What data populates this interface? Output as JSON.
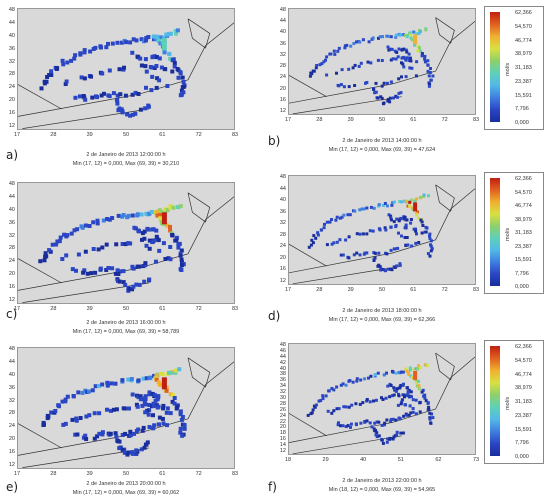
{
  "colors": {
    "background": "#d9d9d9",
    "boundary": "#333333",
    "colormap": [
      "#1a2d9c",
      "#2a46c4",
      "#3f7fe0",
      "#52b8e8",
      "#5fd0b8",
      "#8ed06a",
      "#d8e040",
      "#f0b030",
      "#e06020",
      "#c02010"
    ]
  },
  "chart_data": [
    {
      "type": "heatmap",
      "panel_label": "a)",
      "date": "2 de Janeiro de 2013 12:00:00 h",
      "stats": "Min (17, 12) = 0,000, Max (69, 39) = 30,210",
      "max_value": 30.21,
      "xticks": [
        "17",
        "28",
        "39",
        "50",
        "61",
        "72",
        "83"
      ],
      "yticks": [
        "48",
        "44",
        "40",
        "36",
        "32",
        "28",
        "24",
        "20",
        "16",
        "12"
      ]
    },
    {
      "type": "heatmap",
      "panel_label": "b)",
      "date": "2 de Janeiro de 2013 14:00:00 h",
      "stats": "Min (17, 12) = 0,000, Max (69, 39) = 47,624",
      "max_value": 47.624,
      "xticks": [
        "17",
        "28",
        "39",
        "50",
        "61",
        "72",
        "83"
      ],
      "yticks": [
        "48",
        "44",
        "40",
        "36",
        "32",
        "28",
        "24",
        "20",
        "16",
        "12"
      ]
    },
    {
      "type": "heatmap",
      "panel_label": "c)",
      "date": "2 de Janeiro de 2013 16:00:00 h",
      "stats": "Min (17, 12) = 0,000, Max (69, 39) = 58,789",
      "max_value": 58.789,
      "xticks": [
        "17",
        "28",
        "39",
        "50",
        "61",
        "72",
        "83"
      ],
      "yticks": [
        "48",
        "44",
        "40",
        "36",
        "32",
        "28",
        "24",
        "20",
        "16",
        "12"
      ]
    },
    {
      "type": "heatmap",
      "panel_label": "d)",
      "date": "2 de Janeiro de 2013 18:00:00 h",
      "stats": "Min (17, 12) = 0,000, Max (69, 39) = 62,366",
      "max_value": 62.366,
      "xticks": [
        "17",
        "28",
        "39",
        "50",
        "61",
        "72",
        "83"
      ],
      "yticks": [
        "48",
        "44",
        "40",
        "36",
        "32",
        "28",
        "24",
        "20",
        "16",
        "12"
      ]
    },
    {
      "type": "heatmap",
      "panel_label": "e)",
      "date": "2 de Janeiro de 2013 20:00:00 h",
      "stats": "Min (17, 12) = 0,000, Max (69, 39) = 60,062",
      "max_value": 60.062,
      "xticks": [
        "17",
        "28",
        "39",
        "50",
        "61",
        "72",
        "83"
      ],
      "yticks": [
        "48",
        "44",
        "40",
        "36",
        "32",
        "28",
        "24",
        "20",
        "16",
        "12"
      ]
    },
    {
      "type": "heatmap",
      "panel_label": "f)",
      "date": "2 de Janeiro de 2013 22:00:00 h",
      "stats": "Min (18, 12) = 0,000, Max (69, 39) = 54,965",
      "max_value": 54.965,
      "xticks": [
        "18",
        "29",
        "40",
        "51",
        "62",
        "73"
      ],
      "yticks": [
        "48",
        "46",
        "44",
        "42",
        "40",
        "38",
        "36",
        "34",
        "32",
        "30",
        "28",
        "26",
        "24",
        "22",
        "20",
        "18",
        "16",
        "14",
        "12"
      ]
    }
  ],
  "legend": {
    "unit": "mol/s",
    "ticks": [
      "62,366",
      "54,570",
      "46,774",
      "38,979",
      "31,183",
      "23,387",
      "15,591",
      "7,796",
      "0,000"
    ]
  }
}
